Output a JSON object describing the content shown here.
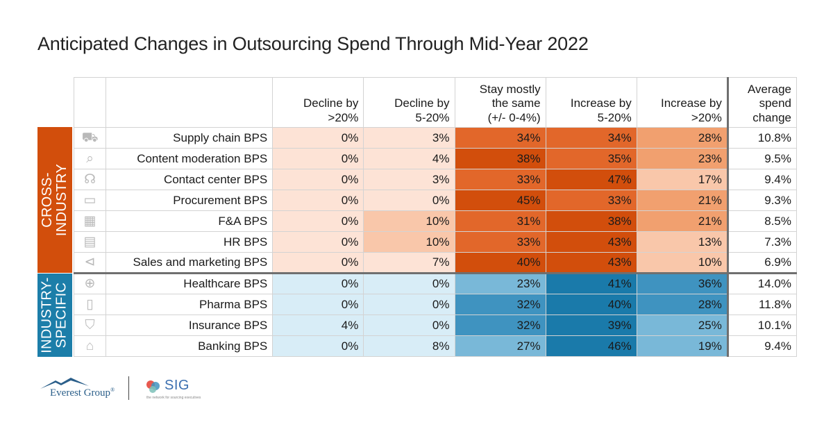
{
  "title": "Anticipated Changes in Outsourcing Spend Through Mid-Year 2022",
  "groups": {
    "cross": {
      "label": "CROSS-\nINDUSTRY",
      "color": "#d24e0c"
    },
    "industry": {
      "label": "INDUSTRY-\nSPECIFIC",
      "color": "#1c7ea9"
    }
  },
  "columns": [
    "Decline by\n>20%",
    "Decline by\n5-20%",
    "Stay mostly\nthe same\n(+/- 0-4%)",
    "Increase by\n5-20%",
    "Increase by\n>20%",
    "Average\nspend\nchange"
  ],
  "chart_data": {
    "type": "table",
    "title": "Anticipated Changes in Outsourcing Spend Through Mid-Year 2022",
    "columns": [
      "Decline by >20%",
      "Decline by 5-20%",
      "Stay mostly the same (+/- 0-4%)",
      "Increase by 5-20%",
      "Increase by >20%",
      "Average spend change"
    ],
    "rows": [
      {
        "label": "Supply chain BPS",
        "group": "cross",
        "icon": "truck-gear-icon",
        "values": [
          "0%",
          "3%",
          "34%",
          "34%",
          "28%"
        ],
        "avg": "10.8%"
      },
      {
        "label": "Content moderation BPS",
        "group": "cross",
        "icon": "code-search-icon",
        "values": [
          "0%",
          "4%",
          "38%",
          "35%",
          "23%"
        ],
        "avg": "9.5%"
      },
      {
        "label": "Contact center BPS",
        "group": "cross",
        "icon": "headset-icon",
        "values": [
          "0%",
          "3%",
          "33%",
          "47%",
          "17%"
        ],
        "avg": "9.4%"
      },
      {
        "label": "Procurement BPS",
        "group": "cross",
        "icon": "credit-card-icon",
        "values": [
          "0%",
          "0%",
          "45%",
          "33%",
          "21%"
        ],
        "avg": "9.3%"
      },
      {
        "label": "F&A BPS",
        "group": "cross",
        "icon": "calculator-icon",
        "values": [
          "0%",
          "10%",
          "31%",
          "38%",
          "21%"
        ],
        "avg": "8.5%"
      },
      {
        "label": "HR BPS",
        "group": "cross",
        "icon": "id-card-icon",
        "values": [
          "0%",
          "10%",
          "33%",
          "43%",
          "13%"
        ],
        "avg": "7.3%"
      },
      {
        "label": "Sales and marketing BPS",
        "group": "cross",
        "icon": "megaphone-icon",
        "values": [
          "0%",
          "7%",
          "40%",
          "43%",
          "10%"
        ],
        "avg": "6.9%"
      },
      {
        "label": "Healthcare BPS",
        "group": "industry",
        "icon": "medical-cross-icon",
        "values": [
          "0%",
          "0%",
          "23%",
          "41%",
          "36%"
        ],
        "avg": "14.0%"
      },
      {
        "label": "Pharma BPS",
        "group": "industry",
        "icon": "pill-bottle-icon",
        "values": [
          "0%",
          "0%",
          "32%",
          "40%",
          "28%"
        ],
        "avg": "11.8%"
      },
      {
        "label": "Insurance BPS",
        "group": "industry",
        "icon": "shield-check-icon",
        "values": [
          "4%",
          "0%",
          "32%",
          "39%",
          "25%"
        ],
        "avg": "10.1%"
      },
      {
        "label": "Banking BPS",
        "group": "industry",
        "icon": "bank-icon",
        "values": [
          "0%",
          "8%",
          "27%",
          "46%",
          "19%"
        ],
        "avg": "9.4%"
      }
    ]
  },
  "palettes": {
    "cross": [
      "#fde3d6",
      "#f9c7aa",
      "#f1a06f",
      "#e2672a",
      "#d24e0c"
    ],
    "industry": [
      "#d8edf7",
      "#b3dbee",
      "#79b8d8",
      "#3f93c0",
      "#1a7aaa"
    ]
  },
  "logos": {
    "everest": "Everest Group",
    "everest_mark": "®",
    "sig": "SIG",
    "sig_tagline": "the network for sourcing executives"
  }
}
